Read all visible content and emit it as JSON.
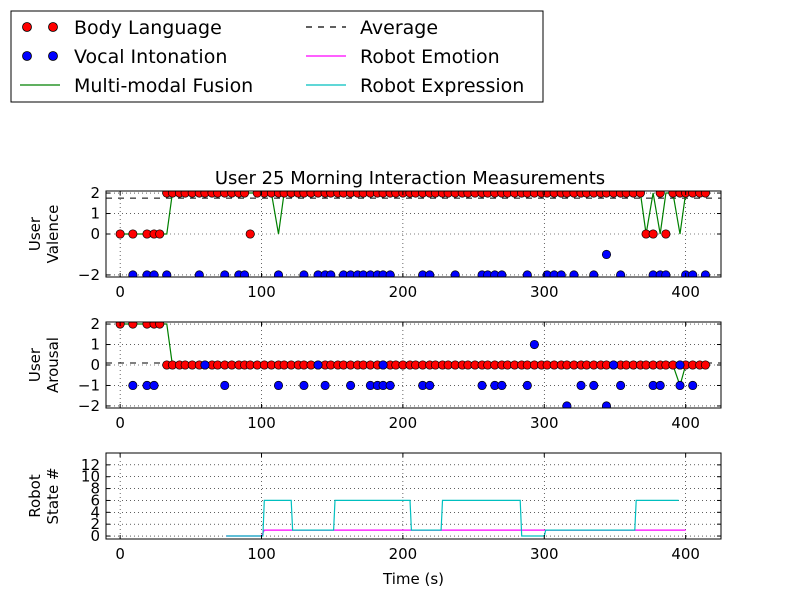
{
  "title": "User 25 Morning Interaction Measurements",
  "legend": [
    {
      "label": "Body Language",
      "kind": "marker",
      "color": "#ff0000"
    },
    {
      "label": "Vocal Intonation",
      "kind": "marker",
      "color": "#0000ff"
    },
    {
      "label": "Multi-modal Fusion",
      "kind": "line",
      "color": "#008000"
    },
    {
      "label": "Average",
      "kind": "dashed",
      "color": "#000000"
    },
    {
      "label": "Robot Emotion",
      "kind": "line",
      "color": "#ff00ff"
    },
    {
      "label": "Robot Expression",
      "kind": "line",
      "color": "#00bfbf"
    }
  ],
  "chart_data": [
    {
      "type": "line",
      "ylabel": [
        "User",
        "Valence"
      ],
      "xlim": [
        -10,
        425
      ],
      "ylim": [
        -2.1,
        2.1
      ],
      "xticks": [
        0,
        100,
        200,
        300,
        400
      ],
      "yticks": [
        -2,
        0,
        1,
        2
      ],
      "ytick_labels": [
        "−2",
        "0",
        "1",
        "2"
      ],
      "grid": true,
      "average": 1.75,
      "series": [
        {
          "name": "Body Language",
          "kind": "marker",
          "color": "#ff0000",
          "x": [
            0,
            9,
            19,
            24,
            28,
            33,
            37,
            42,
            46,
            51,
            56,
            60,
            65,
            69,
            74,
            79,
            84,
            88,
            92,
            97,
            102,
            107,
            112,
            116,
            121,
            126,
            130,
            135,
            140,
            145,
            149,
            154,
            158,
            163,
            168,
            172,
            177,
            182,
            186,
            191,
            195,
            200,
            205,
            209,
            214,
            219,
            223,
            228,
            232,
            237,
            242,
            246,
            251,
            256,
            260,
            265,
            270,
            274,
            279,
            284,
            288,
            293,
            298,
            302,
            307,
            312,
            316,
            321,
            326,
            330,
            335,
            340,
            344,
            349,
            354,
            358,
            363,
            368,
            372,
            377,
            382,
            386,
            391,
            396,
            400,
            405,
            410,
            414
          ],
          "y": [
            0,
            0,
            0,
            0,
            0,
            2,
            2,
            2,
            2,
            2,
            2,
            2,
            2,
            2,
            2,
            2,
            2,
            2,
            0,
            2,
            2,
            2,
            2,
            2,
            2,
            2,
            2,
            2,
            2,
            2,
            2,
            2,
            2,
            2,
            2,
            2,
            2,
            2,
            2,
            2,
            2,
            2,
            2,
            2,
            2,
            2,
            2,
            2,
            2,
            2,
            2,
            2,
            2,
            2,
            2,
            2,
            2,
            2,
            2,
            2,
            2,
            2,
            2,
            2,
            2,
            2,
            2,
            2,
            2,
            2,
            2,
            2,
            2,
            2,
            2,
            2,
            2,
            2,
            0,
            0,
            2,
            0,
            2,
            2,
            2,
            2,
            2,
            2
          ]
        },
        {
          "name": "Vocal Intonation",
          "kind": "marker",
          "color": "#0000ff",
          "x": [
            9,
            19,
            24,
            33,
            56,
            74,
            84,
            88,
            112,
            130,
            140,
            145,
            149,
            158,
            163,
            168,
            172,
            177,
            182,
            186,
            191,
            214,
            219,
            237,
            256,
            260,
            265,
            270,
            288,
            302,
            307,
            312,
            321,
            335,
            344,
            354,
            377,
            382,
            386,
            400,
            405,
            414
          ],
          "y": [
            -2,
            -2,
            -2,
            -2,
            -2,
            -2,
            -2,
            -2,
            -2,
            -2,
            -2,
            -2,
            -2,
            -2,
            -2,
            -2,
            -2,
            -2,
            -2,
            -2,
            -2,
            -2,
            -2,
            -2,
            -2,
            -2,
            -2,
            -2,
            -2,
            -2,
            -2,
            -2,
            -2,
            -2,
            -1,
            -2,
            -2,
            -2,
            -2,
            -2,
            -2,
            -2
          ]
        },
        {
          "name": "Multi-modal Fusion",
          "kind": "line",
          "color": "#008000",
          "x": [
            0,
            28,
            33,
            37,
            88,
            92,
            97,
            107,
            112,
            116,
            121,
            368,
            372,
            377,
            382,
            386,
            391,
            396,
            400,
            405,
            414
          ],
          "y": [
            0,
            0,
            0,
            2,
            2,
            2,
            2,
            2,
            0,
            2,
            2,
            2,
            0,
            2,
            0,
            2,
            2,
            0,
            2,
            2,
            2
          ]
        }
      ]
    },
    {
      "type": "line",
      "ylabel": [
        "User",
        "Arousal"
      ],
      "xlim": [
        -10,
        425
      ],
      "ylim": [
        -2.1,
        2.1
      ],
      "xticks": [
        0,
        100,
        200,
        300,
        400
      ],
      "yticks": [
        -2,
        -1,
        0,
        1,
        2
      ],
      "ytick_labels": [
        "−2",
        "−1",
        "0",
        "1",
        "2"
      ],
      "grid": true,
      "average": 0.1,
      "series": [
        {
          "name": "Body Language",
          "kind": "marker",
          "color": "#ff0000",
          "x": [
            0,
            9,
            19,
            24,
            28,
            33,
            37,
            42,
            46,
            51,
            56,
            60,
            65,
            69,
            74,
            79,
            84,
            88,
            92,
            97,
            102,
            107,
            112,
            116,
            121,
            126,
            130,
            135,
            140,
            145,
            149,
            154,
            158,
            163,
            168,
            172,
            177,
            182,
            186,
            191,
            195,
            200,
            205,
            209,
            214,
            219,
            223,
            228,
            232,
            237,
            242,
            246,
            251,
            256,
            260,
            265,
            270,
            274,
            279,
            284,
            288,
            293,
            298,
            302,
            307,
            312,
            316,
            321,
            326,
            330,
            335,
            340,
            344,
            349,
            354,
            358,
            363,
            368,
            372,
            377,
            382,
            386,
            391,
            396,
            400,
            405,
            410,
            414
          ],
          "y": [
            2,
            2,
            2,
            2,
            2,
            0,
            0,
            0,
            0,
            0,
            0,
            0,
            0,
            0,
            0,
            0,
            0,
            0,
            0,
            0,
            0,
            0,
            0,
            0,
            0,
            0,
            0,
            0,
            0,
            0,
            0,
            0,
            0,
            0,
            0,
            0,
            0,
            0,
            0,
            0,
            0,
            0,
            0,
            0,
            0,
            0,
            0,
            0,
            0,
            0,
            0,
            0,
            0,
            0,
            0,
            0,
            0,
            0,
            0,
            0,
            0,
            0,
            0,
            0,
            0,
            0,
            0,
            0,
            0,
            0,
            0,
            0,
            0,
            0,
            0,
            0,
            0,
            0,
            0,
            0,
            0,
            0,
            0,
            0,
            0,
            0,
            0,
            0
          ]
        },
        {
          "name": "Vocal Intonation",
          "kind": "marker",
          "color": "#0000ff",
          "x": [
            9,
            19,
            24,
            74,
            112,
            130,
            145,
            163,
            177,
            182,
            186,
            191,
            214,
            219,
            256,
            265,
            270,
            288,
            293,
            316,
            326,
            335,
            344,
            354,
            377,
            382,
            396,
            405,
            60,
            140,
            186,
            349,
            396
          ],
          "y": [
            -1,
            -1,
            -1,
            -1,
            -1,
            -1,
            -1,
            -1,
            -1,
            -1,
            -1,
            -1,
            -1,
            -1,
            -1,
            -1,
            -1,
            -1,
            1,
            -2,
            -1,
            -1,
            -2,
            -1,
            -1,
            -1,
            -1,
            -1,
            0,
            0,
            0,
            0,
            0
          ]
        },
        {
          "name": "Multi-modal Fusion",
          "kind": "line",
          "color": "#008000",
          "x": [
            0,
            33,
            37,
            391,
            396,
            400,
            414
          ],
          "y": [
            2,
            2,
            0,
            0,
            -1,
            0,
            0
          ]
        }
      ]
    },
    {
      "type": "line",
      "ylabel": [
        "Robot",
        "State #"
      ],
      "xlabel": "Time (s)",
      "xlim": [
        -10,
        425
      ],
      "ylim": [
        -0.5,
        14
      ],
      "xticks": [
        0,
        100,
        200,
        300,
        400
      ],
      "yticks": [
        0,
        2,
        4,
        6,
        8,
        10,
        12
      ],
      "ytick_labels": [
        "0",
        "2",
        "4",
        "6",
        "8",
        "10",
        "12"
      ],
      "grid": true,
      "series": [
        {
          "name": "Robot Emotion",
          "kind": "line",
          "color": "#ff00ff",
          "x": [
            75,
            100,
            102,
            120,
            121,
            150,
            151,
            205,
            206,
            225,
            226,
            283,
            284,
            302,
            303,
            364,
            365,
            400
          ],
          "y": [
            0,
            0,
            1,
            1,
            1,
            1,
            1,
            1,
            1,
            1,
            1,
            1,
            1,
            1,
            1,
            1,
            1,
            1
          ]
        },
        {
          "name": "Robot Expression",
          "kind": "line",
          "color": "#00bfbf",
          "x": [
            75,
            100,
            101,
            102,
            121,
            122,
            151,
            152,
            205,
            206,
            227,
            228,
            283,
            284,
            300,
            301,
            364,
            365,
            395
          ],
          "y": [
            0,
            0,
            0,
            6,
            6,
            1,
            1,
            6,
            6,
            1,
            1,
            6,
            6,
            0,
            0,
            1,
            1,
            6,
            6
          ]
        }
      ]
    }
  ]
}
